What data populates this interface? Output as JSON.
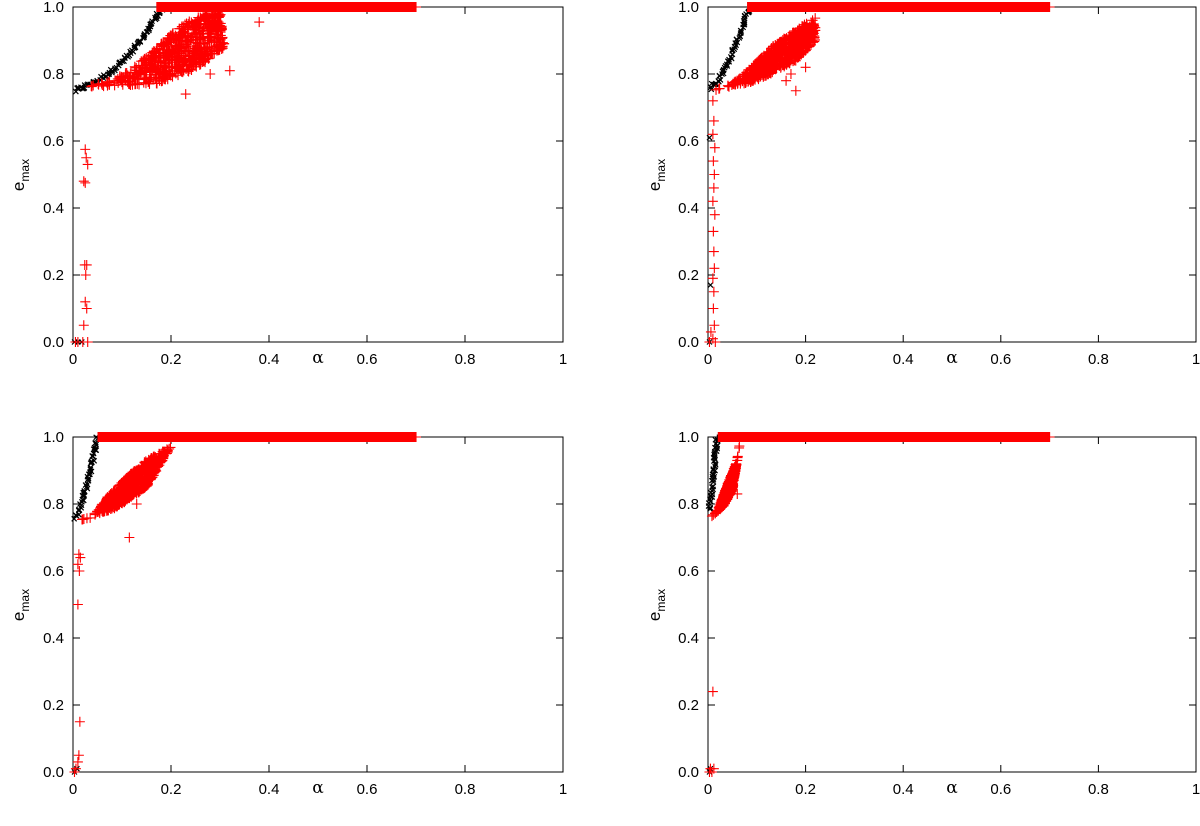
{
  "chart_data": [
    {
      "type": "scatter",
      "panel": "top-left",
      "xlabel": "α",
      "ylabel_main": "e",
      "ylabel_sub": "max",
      "xlim": [
        0,
        1
      ],
      "ylim": [
        0,
        1
      ],
      "xticks": [
        "0",
        "0.2",
        "0.4",
        "0.6",
        "0.8",
        "1"
      ],
      "yticks": [
        "0.0",
        "0.2",
        "0.4",
        "0.6",
        "0.8",
        "1.0"
      ],
      "series": [
        {
          "marker": "x",
          "color": "#000000",
          "curve": [
            [
              0.005,
              0.75
            ],
            [
              0.02,
              0.76
            ],
            [
              0.05,
              0.78
            ],
            [
              0.08,
              0.81
            ],
            [
              0.11,
              0.85
            ],
            [
              0.14,
              0.9
            ],
            [
              0.16,
              0.95
            ],
            [
              0.18,
              0.99
            ],
            [
              0.185,
              1.0
            ]
          ],
          "plateau": [
            0.185,
            0.35,
            1.0
          ],
          "points": [
            [
              0.003,
              0.0
            ],
            [
              0.01,
              0.0
            ],
            [
              0.018,
              0.0
            ]
          ]
        },
        {
          "marker": "+",
          "color": "#ff0000",
          "cloud": [
            [
              0.02,
              0.76
            ],
            [
              0.08,
              0.78
            ],
            [
              0.15,
              0.85
            ],
            [
              0.2,
              0.92
            ],
            [
              0.25,
              0.97
            ],
            [
              0.3,
              0.99
            ],
            [
              0.31,
              0.88
            ],
            [
              0.26,
              0.82
            ],
            [
              0.17,
              0.77
            ]
          ],
          "plateau": [
            0.17,
            0.7,
            1.0
          ],
          "points": [
            [
              0.025,
              0.575
            ],
            [
              0.027,
              0.55
            ],
            [
              0.03,
              0.53
            ],
            [
              0.022,
              0.48
            ],
            [
              0.025,
              0.475
            ],
            [
              0.028,
              0.23
            ],
            [
              0.024,
              0.23
            ],
            [
              0.026,
              0.2
            ],
            [
              0.025,
              0.12
            ],
            [
              0.028,
              0.1
            ],
            [
              0.022,
              0.05
            ],
            [
              0.005,
              0.0
            ],
            [
              0.01,
              0.0
            ],
            [
              0.02,
              0.0
            ],
            [
              0.03,
              0.0
            ],
            [
              0.38,
              0.955
            ],
            [
              0.32,
              0.81
            ],
            [
              0.23,
              0.74
            ],
            [
              0.28,
              0.8
            ]
          ]
        }
      ]
    },
    {
      "type": "scatter",
      "panel": "top-right",
      "xlabel": "α",
      "ylabel_main": "e",
      "ylabel_sub": "max",
      "xlim": [
        0,
        1
      ],
      "ylim": [
        0,
        1
      ],
      "xticks": [
        "0",
        "0.2",
        "0.4",
        "0.6",
        "0.8",
        "1"
      ],
      "yticks": [
        "0.0",
        "0.2",
        "0.4",
        "0.6",
        "0.8",
        "1.0"
      ],
      "series": [
        {
          "marker": "x",
          "color": "#000000",
          "curve": [
            [
              0.005,
              0.76
            ],
            [
              0.02,
              0.78
            ],
            [
              0.04,
              0.83
            ],
            [
              0.06,
              0.9
            ],
            [
              0.075,
              0.96
            ],
            [
              0.085,
              1.0
            ]
          ],
          "plateau": [
            0.085,
            0.35,
            1.0
          ],
          "points": [
            [
              0.003,
              0.61
            ],
            [
              0.005,
              0.17
            ],
            [
              0.003,
              0.0
            ]
          ]
        },
        {
          "marker": "+",
          "color": "#ff0000",
          "cloud": [
            [
              0.01,
              0.75
            ],
            [
              0.05,
              0.77
            ],
            [
              0.09,
              0.82
            ],
            [
              0.13,
              0.88
            ],
            [
              0.18,
              0.93
            ],
            [
              0.22,
              0.97
            ],
            [
              0.22,
              0.9
            ],
            [
              0.18,
              0.84
            ],
            [
              0.1,
              0.78
            ]
          ],
          "plateau": [
            0.08,
            0.7,
            1.0
          ],
          "points": [
            [
              0.01,
              0.72
            ],
            [
              0.012,
              0.66
            ],
            [
              0.01,
              0.62
            ],
            [
              0.014,
              0.58
            ],
            [
              0.011,
              0.54
            ],
            [
              0.013,
              0.5
            ],
            [
              0.012,
              0.46
            ],
            [
              0.01,
              0.42
            ],
            [
              0.014,
              0.38
            ],
            [
              0.011,
              0.33
            ],
            [
              0.012,
              0.27
            ],
            [
              0.013,
              0.22
            ],
            [
              0.01,
              0.19
            ],
            [
              0.012,
              0.15
            ],
            [
              0.011,
              0.1
            ],
            [
              0.013,
              0.05
            ],
            [
              0.006,
              0.03
            ],
            [
              0.01,
              0.01
            ],
            [
              0.015,
              0.0
            ],
            [
              0.003,
              0.0
            ],
            [
              0.18,
              0.75
            ],
            [
              0.17,
              0.8
            ],
            [
              0.2,
              0.82
            ],
            [
              0.16,
              0.78
            ]
          ]
        }
      ]
    },
    {
      "type": "scatter",
      "panel": "bottom-left",
      "xlabel": "α",
      "ylabel_main": "e",
      "ylabel_sub": "max",
      "xlim": [
        0,
        1
      ],
      "ylim": [
        0,
        1
      ],
      "xticks": [
        "0",
        "0.2",
        "0.4",
        "0.6",
        "0.8",
        "1"
      ],
      "yticks": [
        "0.0",
        "0.2",
        "0.4",
        "0.6",
        "0.8",
        "1.0"
      ],
      "series": [
        {
          "marker": "x",
          "color": "#000000",
          "curve": [
            [
              0.005,
              0.76
            ],
            [
              0.015,
              0.79
            ],
            [
              0.025,
              0.84
            ],
            [
              0.035,
              0.9
            ],
            [
              0.045,
              0.96
            ],
            [
              0.05,
              1.0
            ]
          ],
          "plateau": [
            0.05,
            0.35,
            1.0
          ],
          "points": [
            [
              0.003,
              0.0
            ],
            [
              0.008,
              0.01
            ]
          ]
        },
        {
          "marker": "+",
          "color": "#ff0000",
          "cloud": [
            [
              0.01,
              0.75
            ],
            [
              0.04,
              0.76
            ],
            [
              0.07,
              0.82
            ],
            [
              0.11,
              0.88
            ],
            [
              0.15,
              0.93
            ],
            [
              0.2,
              0.97
            ],
            [
              0.15,
              0.85
            ],
            [
              0.09,
              0.79
            ]
          ],
          "plateau": [
            0.05,
            0.7,
            1.0
          ],
          "points": [
            [
              0.012,
              0.65
            ],
            [
              0.015,
              0.64
            ],
            [
              0.01,
              0.62
            ],
            [
              0.013,
              0.6
            ],
            [
              0.01,
              0.5
            ],
            [
              0.014,
              0.15
            ],
            [
              0.012,
              0.05
            ],
            [
              0.01,
              0.03
            ],
            [
              0.006,
              0.01
            ],
            [
              0.003,
              0.0
            ],
            [
              0.115,
              0.7
            ],
            [
              0.13,
              0.8
            ]
          ]
        }
      ]
    },
    {
      "type": "scatter",
      "panel": "bottom-right",
      "xlabel": "α",
      "ylabel_main": "e",
      "ylabel_sub": "max",
      "xlim": [
        0,
        1
      ],
      "ylim": [
        0,
        1
      ],
      "xticks": [
        "0",
        "0.2",
        "0.4",
        "0.6",
        "0.8",
        "1"
      ],
      "yticks": [
        "0.0",
        "0.2",
        "0.4",
        "0.6",
        "0.8",
        "1.0"
      ],
      "series": [
        {
          "marker": "x",
          "color": "#000000",
          "curve": [
            [
              0.003,
              0.78
            ],
            [
              0.008,
              0.84
            ],
            [
              0.013,
              0.92
            ],
            [
              0.018,
              1.0
            ]
          ],
          "plateau": [
            0.018,
            0.35,
            1.0
          ],
          "points": [
            [
              0.003,
              0.0
            ],
            [
              0.005,
              0.01
            ]
          ]
        },
        {
          "marker": "+",
          "color": "#ff0000",
          "cloud": [
            [
              0.005,
              0.76
            ],
            [
              0.02,
              0.78
            ],
            [
              0.04,
              0.86
            ],
            [
              0.06,
              0.93
            ],
            [
              0.065,
              0.98
            ],
            [
              0.05,
              0.84
            ],
            [
              0.03,
              0.79
            ]
          ],
          "plateau": [
            0.02,
            0.7,
            1.0
          ],
          "points": [
            [
              0.01,
              0.24
            ],
            [
              0.005,
              0.01
            ],
            [
              0.008,
              0.0
            ],
            [
              0.012,
              0.01
            ],
            [
              0.003,
              0.0
            ],
            [
              0.06,
              0.83
            ]
          ]
        }
      ]
    }
  ]
}
